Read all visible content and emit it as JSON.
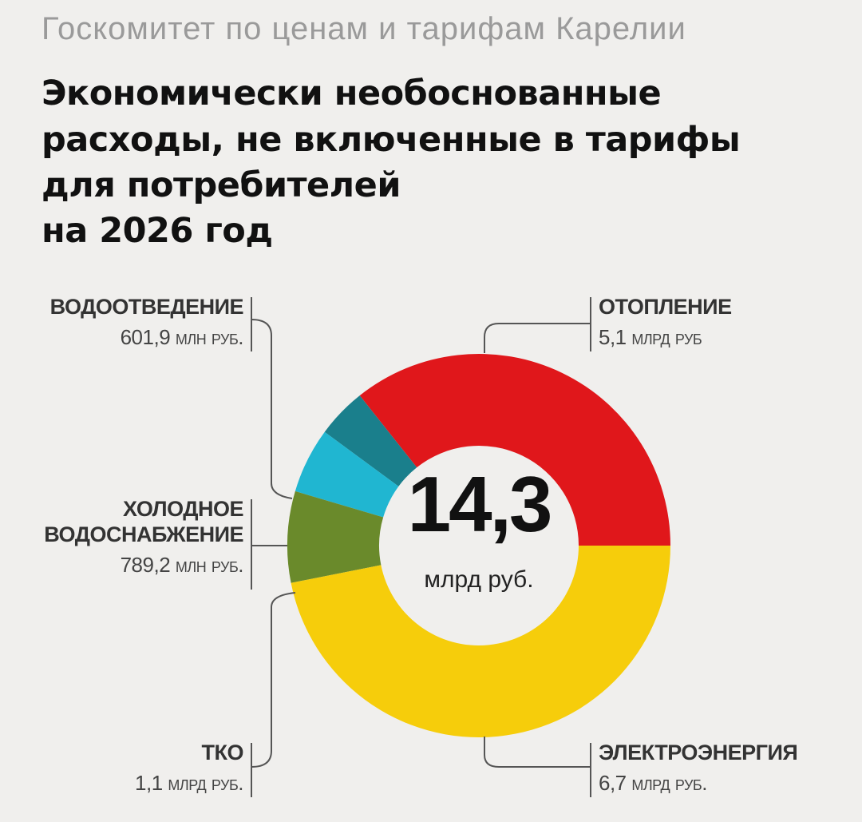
{
  "chart_data": {
    "type": "pie",
    "header": "Госкомитет по ценам и тарифам Карелии",
    "title_lines": [
      "Экономически необоснованные",
      "расходы, не включенные в тарифы",
      "для потребителей",
      "на 2026 год"
    ],
    "center_label": "14,3",
    "center_sublabel": "млрд руб.",
    "categories": [
      "ЭЛЕКТРОЭНЕРГИЯ",
      "ТКО",
      "ХОЛОДНОЕ ВОДОСНАБЖЕНИЕ",
      "ВОДООТВЕДЕНИЕ",
      "ОТОПЛЕНИЕ"
    ],
    "values": [
      6700,
      1100,
      789.2,
      601.9,
      5100
    ],
    "value_labels": [
      "6,7 млрд руб.",
      "1,1 млрд руб.",
      "789,2 млн руб.",
      "601,9 млн руб.",
      "5,1 млрд руб"
    ],
    "colors": [
      "#f6cd0b",
      "#6a8a2b",
      "#20b6d1",
      "#1a7f8c",
      "#e0171b"
    ]
  }
}
